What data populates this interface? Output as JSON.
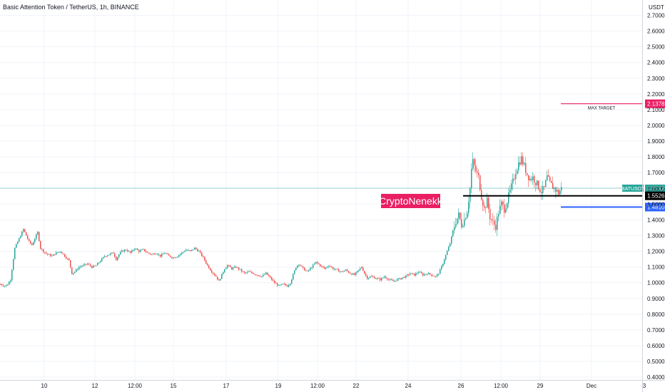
{
  "header": {
    "title": "Basic Attention Token / TetherUS, 1h, BINANCE"
  },
  "chart_data": {
    "type": "candlestick",
    "y_unit": "USDT",
    "ylim": [
      0.38,
      2.82
    ],
    "yticks": [
      "2.7000",
      "2.6000",
      "2.5000",
      "2.4000",
      "2.3000",
      "2.2000",
      "2.1000",
      "2.0000",
      "1.9000",
      "1.8000",
      "1.7000",
      "1.6000",
      "1.5000",
      "1.4000",
      "1.3000",
      "1.2000",
      "1.1000",
      "1.0000",
      "0.9000",
      "0.8000",
      "0.7000",
      "0.6000",
      "0.5000",
      "0.4000"
    ],
    "xticks": [
      "10",
      "12",
      "12:00",
      "15",
      "17",
      "19",
      "12:00",
      "22",
      "24",
      "26",
      "12:00",
      "29",
      "Dec",
      "3"
    ],
    "grid": true,
    "colors": {
      "up": "#26a69a",
      "down": "#ef5350"
    },
    "price_path": [
      [
        0,
        0.99
      ],
      [
        6,
        0.98
      ],
      [
        10,
        0.99
      ],
      [
        14,
        1.02
      ],
      [
        20,
        1.22
      ],
      [
        26,
        1.28
      ],
      [
        32,
        1.34
      ],
      [
        36,
        1.3
      ],
      [
        40,
        1.26
      ],
      [
        44,
        1.24
      ],
      [
        48,
        1.28
      ],
      [
        52,
        1.32
      ],
      [
        56,
        1.22
      ],
      [
        60,
        1.2
      ],
      [
        66,
        1.18
      ],
      [
        72,
        1.17
      ],
      [
        78,
        1.19
      ],
      [
        84,
        1.2
      ],
      [
        90,
        1.17
      ],
      [
        96,
        1.14
      ],
      [
        100,
        1.06
      ],
      [
        104,
        1.07
      ],
      [
        110,
        1.1
      ],
      [
        116,
        1.11
      ],
      [
        122,
        1.12
      ],
      [
        128,
        1.1
      ],
      [
        134,
        1.11
      ],
      [
        140,
        1.14
      ],
      [
        146,
        1.17
      ],
      [
        152,
        1.18
      ],
      [
        158,
        1.19
      ],
      [
        162,
        1.15
      ],
      [
        166,
        1.18
      ],
      [
        170,
        1.2
      ],
      [
        176,
        1.21
      ],
      [
        182,
        1.19
      ],
      [
        188,
        1.22
      ],
      [
        194,
        1.2
      ],
      [
        200,
        1.21
      ],
      [
        206,
        1.19
      ],
      [
        212,
        1.18
      ],
      [
        218,
        1.19
      ],
      [
        224,
        1.17
      ],
      [
        230,
        1.19
      ],
      [
        236,
        1.17
      ],
      [
        242,
        1.16
      ],
      [
        248,
        1.17
      ],
      [
        254,
        1.19
      ],
      [
        260,
        1.21
      ],
      [
        266,
        1.2
      ],
      [
        272,
        1.22
      ],
      [
        278,
        1.2
      ],
      [
        284,
        1.16
      ],
      [
        290,
        1.11
      ],
      [
        296,
        1.07
      ],
      [
        302,
        1.04
      ],
      [
        306,
        1.01
      ],
      [
        310,
        1.05
      ],
      [
        314,
        1.09
      ],
      [
        318,
        1.11
      ],
      [
        324,
        1.09
      ],
      [
        330,
        1.1
      ],
      [
        336,
        1.08
      ],
      [
        342,
        1.06
      ],
      [
        348,
        1.07
      ],
      [
        354,
        1.06
      ],
      [
        360,
        1.05
      ],
      [
        366,
        1.04
      ],
      [
        372,
        1.06
      ],
      [
        378,
        1.03
      ],
      [
        384,
        1.0
      ],
      [
        390,
        0.98
      ],
      [
        396,
        0.99
      ],
      [
        402,
        0.98
      ],
      [
        406,
        1.0
      ],
      [
        410,
        1.05
      ],
      [
        414,
        1.1
      ],
      [
        418,
        1.12
      ],
      [
        424,
        1.09
      ],
      [
        430,
        1.07
      ],
      [
        436,
        1.1
      ],
      [
        442,
        1.13
      ],
      [
        448,
        1.11
      ],
      [
        454,
        1.09
      ],
      [
        460,
        1.11
      ],
      [
        466,
        1.09
      ],
      [
        472,
        1.08
      ],
      [
        478,
        1.07
      ],
      [
        484,
        1.08
      ],
      [
        490,
        1.06
      ],
      [
        496,
        1.05
      ],
      [
        502,
        1.08
      ],
      [
        506,
        1.1
      ],
      [
        510,
        1.06
      ],
      [
        514,
        1.03
      ],
      [
        520,
        1.04
      ],
      [
        526,
        1.03
      ],
      [
        532,
        1.02
      ],
      [
        538,
        1.04
      ],
      [
        544,
        1.02
      ],
      [
        550,
        1.01
      ],
      [
        556,
        1.02
      ],
      [
        562,
        1.03
      ],
      [
        568,
        1.04
      ],
      [
        574,
        1.06
      ],
      [
        580,
        1.05
      ],
      [
        586,
        1.07
      ],
      [
        592,
        1.05
      ],
      [
        598,
        1.06
      ],
      [
        604,
        1.05
      ],
      [
        610,
        1.04
      ],
      [
        614,
        1.06
      ],
      [
        618,
        1.1
      ],
      [
        622,
        1.15
      ],
      [
        626,
        1.2
      ],
      [
        630,
        1.25
      ],
      [
        634,
        1.33
      ],
      [
        638,
        1.39
      ],
      [
        642,
        1.43
      ],
      [
        646,
        1.37
      ],
      [
        650,
        1.4
      ],
      [
        654,
        1.46
      ],
      [
        658,
        1.6
      ],
      [
        660,
        1.72
      ],
      [
        662,
        1.77
      ],
      [
        666,
        1.71
      ],
      [
        670,
        1.67
      ],
      [
        674,
        1.55
      ],
      [
        678,
        1.47
      ],
      [
        682,
        1.52
      ],
      [
        686,
        1.42
      ],
      [
        690,
        1.38
      ],
      [
        694,
        1.36
      ],
      [
        698,
        1.45
      ],
      [
        702,
        1.5
      ],
      [
        706,
        1.47
      ],
      [
        710,
        1.52
      ],
      [
        714,
        1.58
      ],
      [
        718,
        1.64
      ],
      [
        722,
        1.71
      ],
      [
        726,
        1.76
      ],
      [
        730,
        1.79
      ],
      [
        734,
        1.74
      ],
      [
        738,
        1.69
      ],
      [
        742,
        1.66
      ],
      [
        746,
        1.67
      ],
      [
        750,
        1.64
      ],
      [
        754,
        1.61
      ],
      [
        758,
        1.58
      ],
      [
        762,
        1.6
      ],
      [
        766,
        1.67
      ],
      [
        770,
        1.63
      ],
      [
        774,
        1.61
      ],
      [
        778,
        1.59
      ],
      [
        782,
        1.57
      ],
      [
        786,
        1.6
      ]
    ],
    "levels": [
      {
        "name": "max-target",
        "value": 2.1378,
        "label": "MAX TARGET",
        "axis_label": "2.1378",
        "color": "#e91e63"
      },
      {
        "name": "black-level",
        "value": 1.5526,
        "axis_label": "1.5526",
        "color": "#000000"
      },
      {
        "name": "blue-level",
        "value": 1.481,
        "axis_label": "1.4810",
        "color": "#2962ff"
      }
    ],
    "current_price": {
      "symbol": "BATUSDT",
      "value": "1.6012",
      "countdown": "57:41",
      "color": "#26a69a"
    },
    "watermark": {
      "text": "CryptoNenekk",
      "color": "#e91e63"
    }
  }
}
